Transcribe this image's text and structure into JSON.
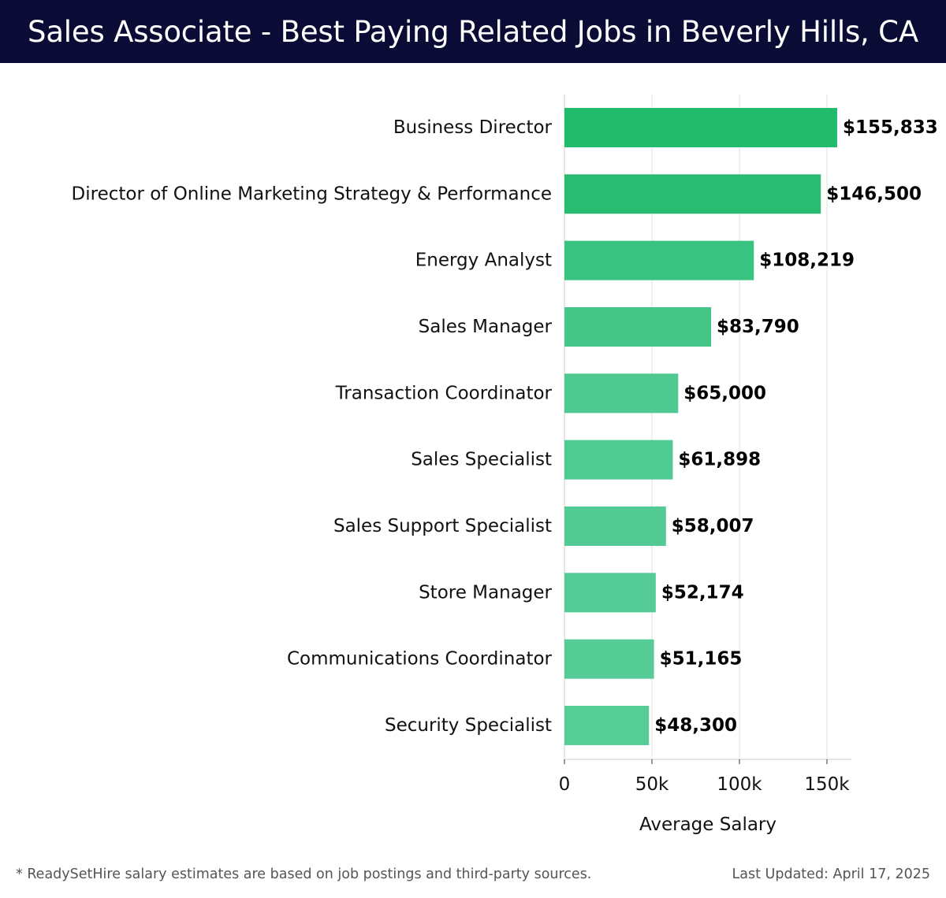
{
  "header": {
    "title": "Sales Associate - Best Paying Related Jobs in Beverly Hills, CA"
  },
  "chart_data": {
    "type": "bar",
    "orientation": "horizontal",
    "title": "Sales Associate - Best Paying Related Jobs in Beverly Hills, CA",
    "xlabel": "Average Salary",
    "ylabel": "",
    "xlim": [
      0,
      165000
    ],
    "x_ticks": [
      {
        "value": 0,
        "label": "0"
      },
      {
        "value": 50000,
        "label": "50k"
      },
      {
        "value": 100000,
        "label": "100k"
      },
      {
        "value": 150000,
        "label": "150k"
      }
    ],
    "grid": "vertical",
    "categories": [
      "Business Director",
      "Director of Online Marketing Strategy & Performance",
      "Energy Analyst",
      "Sales Manager",
      "Transaction Coordinator",
      "Sales Specialist",
      "Sales Support Specialist",
      "Store Manager",
      "Communications Coordinator",
      "Security Specialist"
    ],
    "values": [
      155833,
      146500,
      108219,
      83790,
      65000,
      61898,
      58007,
      52174,
      51165,
      48300
    ],
    "value_labels": [
      "$155,833",
      "$146,500",
      "$108,219",
      "$83,790",
      "$65,000",
      "$61,898",
      "$58,007",
      "$52,174",
      "$51,165",
      "$48,300"
    ],
    "colors": {
      "bar_high": "#22bb6e",
      "bar_low": "#56cc97",
      "grid": "#e2e2e2",
      "axis": "#cccccc"
    }
  },
  "footer": {
    "note": "* ReadySetHire salary estimates are based on job postings and third-party sources.",
    "updated": "Last Updated: April 17, 2025"
  }
}
